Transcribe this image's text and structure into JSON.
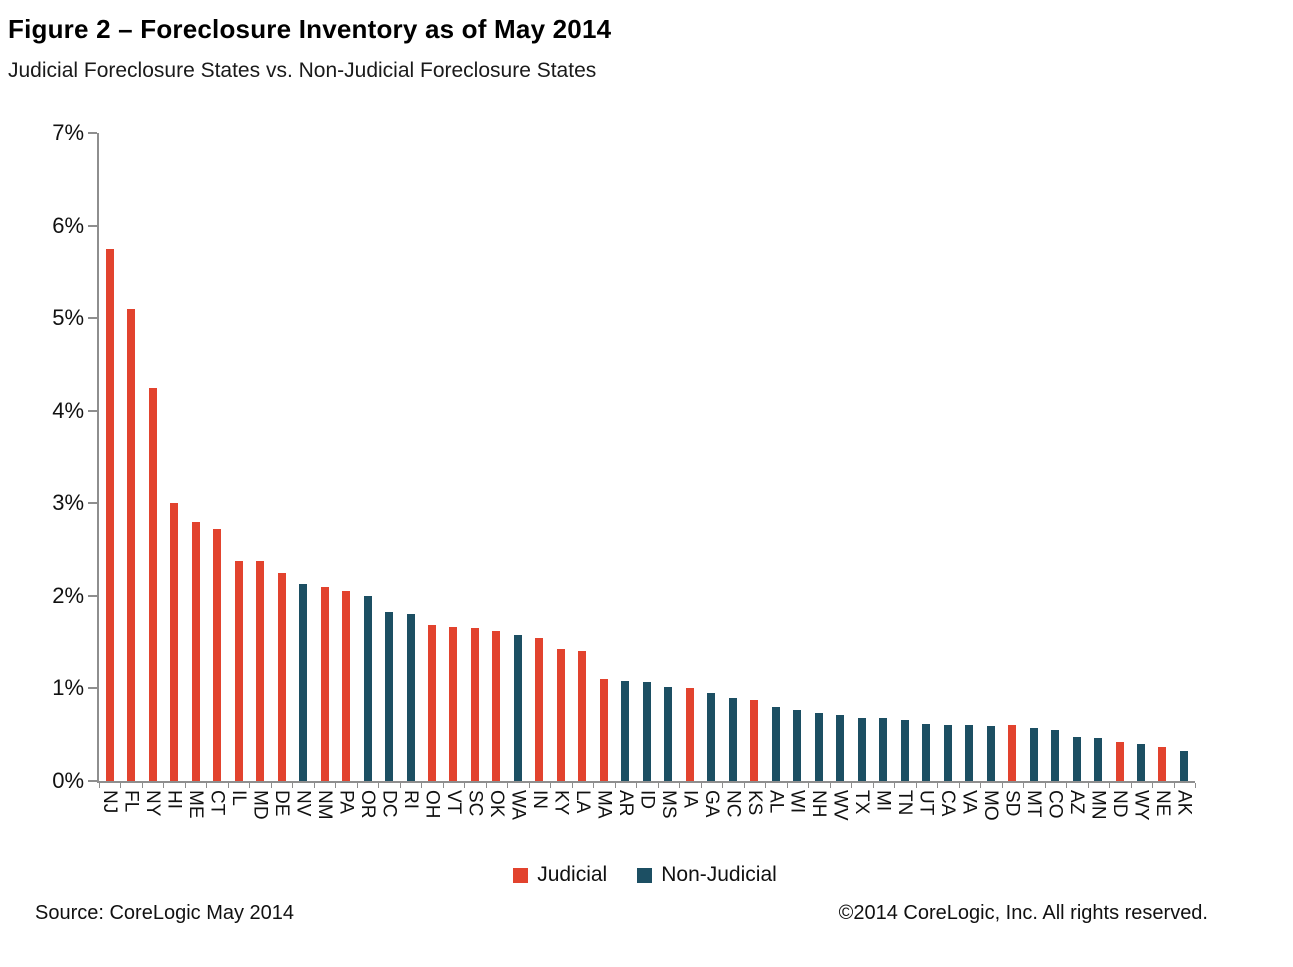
{
  "header": {
    "title": "Figure 2 – Foreclosure Inventory as of May 2014",
    "subtitle": "Judicial Foreclosure States vs. Non-Judicial Foreclosure States"
  },
  "legend": {
    "judicial_label": "Judicial",
    "non_judicial_label": "Non-Judicial"
  },
  "footer": {
    "source": "Source: CoreLogic  May 2014",
    "copyright": "©2014 CoreLogic, Inc.  All rights reserved."
  },
  "chart_data": {
    "type": "bar",
    "title": "Figure 2 – Foreclosure Inventory as of May 2014",
    "subtitle": "Judicial Foreclosure States vs. Non-Judicial Foreclosure States",
    "xlabel": "",
    "ylabel": "",
    "ylim": [
      0,
      7
    ],
    "yticks": [
      0,
      1,
      2,
      3,
      4,
      5,
      6,
      7
    ],
    "ytick_suffix": "%",
    "grid": false,
    "legend_position": "bottom",
    "colors": {
      "judicial": "#E2432E",
      "non_judicial": "#1C4F63"
    },
    "bars": [
      {
        "state": "NJ",
        "value": 5.75,
        "type": "judicial"
      },
      {
        "state": "FL",
        "value": 5.1,
        "type": "judicial"
      },
      {
        "state": "NY",
        "value": 4.25,
        "type": "judicial"
      },
      {
        "state": "HI",
        "value": 3.0,
        "type": "judicial"
      },
      {
        "state": "ME",
        "value": 2.8,
        "type": "judicial"
      },
      {
        "state": "CT",
        "value": 2.72,
        "type": "judicial"
      },
      {
        "state": "IL",
        "value": 2.38,
        "type": "judicial"
      },
      {
        "state": "MD",
        "value": 2.38,
        "type": "judicial"
      },
      {
        "state": "DE",
        "value": 2.25,
        "type": "judicial"
      },
      {
        "state": "NV",
        "value": 2.13,
        "type": "non_judicial"
      },
      {
        "state": "NM",
        "value": 2.1,
        "type": "judicial"
      },
      {
        "state": "PA",
        "value": 2.05,
        "type": "judicial"
      },
      {
        "state": "OR",
        "value": 2.0,
        "type": "non_judicial"
      },
      {
        "state": "DC",
        "value": 1.83,
        "type": "non_judicial"
      },
      {
        "state": "RI",
        "value": 1.8,
        "type": "non_judicial"
      },
      {
        "state": "OH",
        "value": 1.69,
        "type": "judicial"
      },
      {
        "state": "VT",
        "value": 1.66,
        "type": "judicial"
      },
      {
        "state": "SC",
        "value": 1.65,
        "type": "judicial"
      },
      {
        "state": "OK",
        "value": 1.62,
        "type": "judicial"
      },
      {
        "state": "WA",
        "value": 1.58,
        "type": "non_judicial"
      },
      {
        "state": "IN",
        "value": 1.55,
        "type": "judicial"
      },
      {
        "state": "KY",
        "value": 1.43,
        "type": "judicial"
      },
      {
        "state": "LA",
        "value": 1.4,
        "type": "judicial"
      },
      {
        "state": "MA",
        "value": 1.1,
        "type": "judicial"
      },
      {
        "state": "AR",
        "value": 1.08,
        "type": "non_judicial"
      },
      {
        "state": "ID",
        "value": 1.07,
        "type": "non_judicial"
      },
      {
        "state": "MS",
        "value": 1.02,
        "type": "non_judicial"
      },
      {
        "state": "IA",
        "value": 1.0,
        "type": "judicial"
      },
      {
        "state": "GA",
        "value": 0.95,
        "type": "non_judicial"
      },
      {
        "state": "NC",
        "value": 0.9,
        "type": "non_judicial"
      },
      {
        "state": "KS",
        "value": 0.87,
        "type": "judicial"
      },
      {
        "state": "AL",
        "value": 0.8,
        "type": "non_judicial"
      },
      {
        "state": "WI",
        "value": 0.77,
        "type": "non_judicial"
      },
      {
        "state": "NH",
        "value": 0.73,
        "type": "non_judicial"
      },
      {
        "state": "WV",
        "value": 0.71,
        "type": "non_judicial"
      },
      {
        "state": "TX",
        "value": 0.68,
        "type": "non_judicial"
      },
      {
        "state": "MI",
        "value": 0.68,
        "type": "non_judicial"
      },
      {
        "state": "TN",
        "value": 0.66,
        "type": "non_judicial"
      },
      {
        "state": "UT",
        "value": 0.62,
        "type": "non_judicial"
      },
      {
        "state": "CA",
        "value": 0.6,
        "type": "non_judicial"
      },
      {
        "state": "VA",
        "value": 0.6,
        "type": "non_judicial"
      },
      {
        "state": "MO",
        "value": 0.59,
        "type": "non_judicial"
      },
      {
        "state": "SD",
        "value": 0.61,
        "type": "judicial"
      },
      {
        "state": "MT",
        "value": 0.57,
        "type": "non_judicial"
      },
      {
        "state": "CO",
        "value": 0.55,
        "type": "non_judicial"
      },
      {
        "state": "AZ",
        "value": 0.48,
        "type": "non_judicial"
      },
      {
        "state": "MN",
        "value": 0.46,
        "type": "non_judicial"
      },
      {
        "state": "ND",
        "value": 0.42,
        "type": "judicial"
      },
      {
        "state": "WY",
        "value": 0.4,
        "type": "non_judicial"
      },
      {
        "state": "NE",
        "value": 0.37,
        "type": "judicial"
      },
      {
        "state": "AK",
        "value": 0.32,
        "type": "non_judicial"
      }
    ]
  }
}
